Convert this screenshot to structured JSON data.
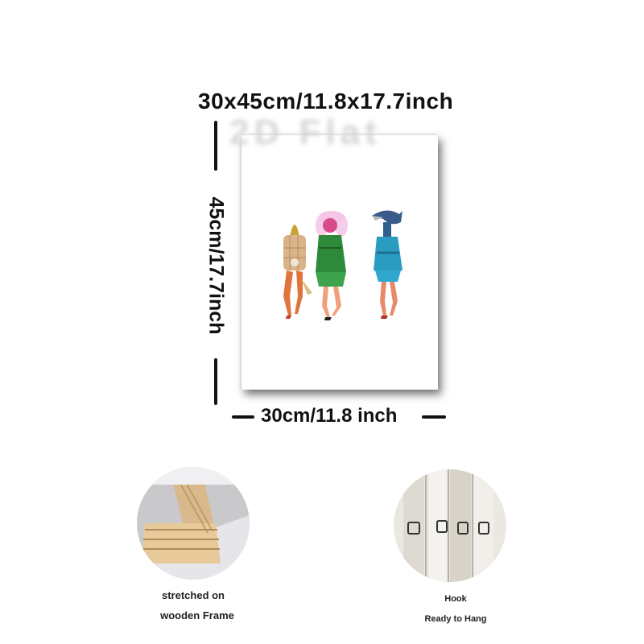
{
  "size_title": "30x45cm/11.8x17.7inch",
  "watermark": "2D Flat",
  "height_label": "45cm/17.7inch",
  "width_label": "30cm/11.8 inch",
  "features": [
    {
      "caption_line1": "stretched on",
      "caption_line2": "wooden Frame"
    },
    {
      "caption_line1": "Hook",
      "caption_line2": "Ready to Hang"
    }
  ]
}
